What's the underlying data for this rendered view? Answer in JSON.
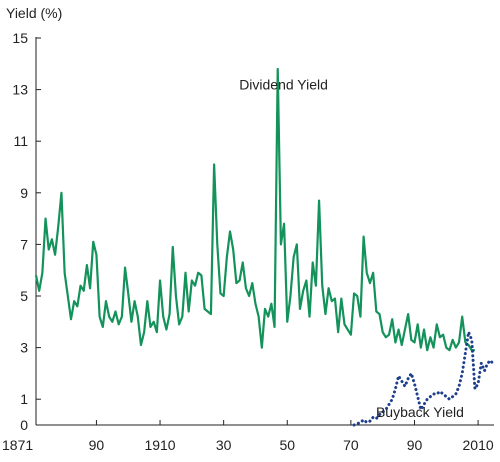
{
  "chart_data": {
    "type": "line",
    "ylabel": "Yield (%)",
    "xlabel": "",
    "xlim": [
      1871,
      2015
    ],
    "ylim": [
      0,
      15
    ],
    "grid": false,
    "legend": "none",
    "x_ticks": [
      1871,
      1890,
      1910,
      1930,
      1950,
      1970,
      1990,
      2010
    ],
    "x_tick_labels": [
      "1871",
      "90",
      "1910",
      "30",
      "50",
      "70",
      "90",
      "2010"
    ],
    "y_ticks": [
      0,
      1,
      3,
      5,
      7,
      9,
      11,
      13,
      15
    ],
    "y_tick_labels": [
      "0",
      "1",
      "3",
      "5",
      "7",
      "9",
      "11",
      "13",
      "15"
    ],
    "annotations": [
      {
        "text": "Dividend Yield",
        "series": "dividend",
        "x": 1933,
        "y": 13.2
      },
      {
        "text": "Buyback Yield",
        "series": "buyback",
        "x": 1976,
        "y": 0.5
      }
    ],
    "series": [
      {
        "key": "dividend",
        "color": "#13925a",
        "style": "solid",
        "points": [
          [
            1871,
            5.8
          ],
          [
            1872,
            5.2
          ],
          [
            1873,
            5.9
          ],
          [
            1874,
            8.0
          ],
          [
            1875,
            6.8
          ],
          [
            1876,
            7.2
          ],
          [
            1877,
            6.6
          ],
          [
            1878,
            7.7
          ],
          [
            1879,
            9.0
          ],
          [
            1880,
            5.9
          ],
          [
            1881,
            5.0
          ],
          [
            1882,
            4.1
          ],
          [
            1883,
            4.8
          ],
          [
            1884,
            4.6
          ],
          [
            1885,
            5.4
          ],
          [
            1886,
            5.2
          ],
          [
            1887,
            6.2
          ],
          [
            1888,
            5.3
          ],
          [
            1889,
            7.1
          ],
          [
            1890,
            6.6
          ],
          [
            1891,
            4.2
          ],
          [
            1892,
            3.8
          ],
          [
            1893,
            4.8
          ],
          [
            1894,
            4.2
          ],
          [
            1895,
            4.0
          ],
          [
            1896,
            4.4
          ],
          [
            1897,
            3.9
          ],
          [
            1898,
            4.2
          ],
          [
            1899,
            6.1
          ],
          [
            1900,
            5.1
          ],
          [
            1901,
            4.0
          ],
          [
            1902,
            4.8
          ],
          [
            1903,
            4.2
          ],
          [
            1904,
            3.1
          ],
          [
            1905,
            3.6
          ],
          [
            1906,
            4.8
          ],
          [
            1907,
            3.8
          ],
          [
            1908,
            4.0
          ],
          [
            1909,
            3.6
          ],
          [
            1910,
            5.6
          ],
          [
            1911,
            4.2
          ],
          [
            1912,
            3.7
          ],
          [
            1913,
            4.3
          ],
          [
            1914,
            6.9
          ],
          [
            1915,
            5.0
          ],
          [
            1916,
            3.9
          ],
          [
            1917,
            4.2
          ],
          [
            1918,
            5.9
          ],
          [
            1919,
            4.4
          ],
          [
            1920,
            5.6
          ],
          [
            1921,
            5.4
          ],
          [
            1922,
            5.9
          ],
          [
            1923,
            5.8
          ],
          [
            1924,
            4.5
          ],
          [
            1925,
            4.4
          ],
          [
            1926,
            4.3
          ],
          [
            1927,
            10.1
          ],
          [
            1928,
            7.0
          ],
          [
            1929,
            5.1
          ],
          [
            1930,
            5.0
          ],
          [
            1931,
            6.5
          ],
          [
            1932,
            7.5
          ],
          [
            1933,
            6.8
          ],
          [
            1934,
            5.5
          ],
          [
            1935,
            5.6
          ],
          [
            1936,
            6.3
          ],
          [
            1937,
            5.3
          ],
          [
            1938,
            5.0
          ],
          [
            1939,
            5.5
          ],
          [
            1940,
            4.7
          ],
          [
            1941,
            4.2
          ],
          [
            1942,
            3.0
          ],
          [
            1943,
            4.5
          ],
          [
            1944,
            4.2
          ],
          [
            1945,
            4.7
          ],
          [
            1946,
            3.8
          ],
          [
            1947,
            13.8
          ],
          [
            1948,
            7.0
          ],
          [
            1949,
            7.8
          ],
          [
            1950,
            4.0
          ],
          [
            1951,
            5.0
          ],
          [
            1952,
            6.5
          ],
          [
            1953,
            7.0
          ],
          [
            1954,
            4.5
          ],
          [
            1955,
            5.2
          ],
          [
            1956,
            5.6
          ],
          [
            1957,
            4.2
          ],
          [
            1958,
            6.3
          ],
          [
            1959,
            5.4
          ],
          [
            1960,
            8.7
          ],
          [
            1961,
            5.4
          ],
          [
            1962,
            4.3
          ],
          [
            1963,
            5.3
          ],
          [
            1964,
            4.8
          ],
          [
            1965,
            4.9
          ],
          [
            1966,
            3.6
          ],
          [
            1967,
            4.9
          ],
          [
            1968,
            3.9
          ],
          [
            1969,
            3.7
          ],
          [
            1970,
            3.5
          ],
          [
            1971,
            5.1
          ],
          [
            1972,
            5.0
          ],
          [
            1973,
            4.2
          ],
          [
            1974,
            7.3
          ],
          [
            1975,
            5.9
          ],
          [
            1976,
            5.5
          ],
          [
            1977,
            5.9
          ],
          [
            1978,
            4.4
          ],
          [
            1979,
            4.3
          ],
          [
            1980,
            3.6
          ],
          [
            1981,
            3.4
          ],
          [
            1982,
            3.5
          ],
          [
            1983,
            4.1
          ],
          [
            1984,
            3.2
          ],
          [
            1985,
            3.7
          ],
          [
            1986,
            3.1
          ],
          [
            1987,
            3.7
          ],
          [
            1988,
            4.3
          ],
          [
            1989,
            3.3
          ],
          [
            1990,
            3.2
          ],
          [
            1991,
            3.9
          ],
          [
            1992,
            3.0
          ],
          [
            1993,
            3.7
          ],
          [
            1994,
            2.9
          ],
          [
            1995,
            3.4
          ],
          [
            1996,
            3.0
          ],
          [
            1997,
            3.9
          ],
          [
            1998,
            3.4
          ],
          [
            1999,
            3.5
          ],
          [
            2000,
            3.0
          ],
          [
            2001,
            2.9
          ],
          [
            2002,
            3.3
          ],
          [
            2003,
            3.0
          ],
          [
            2004,
            3.2
          ],
          [
            2005,
            4.2
          ],
          [
            2006,
            3.2
          ],
          [
            2007,
            3.1
          ],
          [
            2008,
            2.9
          ],
          [
            2009,
            2.9
          ]
        ]
      },
      {
        "key": "buyback",
        "color": "#1e3f8c",
        "style": "dotted",
        "points": [
          [
            1971,
            0.0
          ],
          [
            1972,
            0.05
          ],
          [
            1973,
            0.1
          ],
          [
            1974,
            0.2
          ],
          [
            1975,
            0.1
          ],
          [
            1976,
            0.15
          ],
          [
            1977,
            0.3
          ],
          [
            1978,
            0.25
          ],
          [
            1979,
            0.4
          ],
          [
            1980,
            0.5
          ],
          [
            1981,
            0.6
          ],
          [
            1982,
            0.8
          ],
          [
            1983,
            1.0
          ],
          [
            1984,
            1.4
          ],
          [
            1985,
            1.9
          ],
          [
            1986,
            1.7
          ],
          [
            1987,
            1.5
          ],
          [
            1988,
            1.8
          ],
          [
            1989,
            2.0
          ],
          [
            1990,
            1.6
          ],
          [
            1991,
            1.1
          ],
          [
            1992,
            0.6
          ],
          [
            1993,
            0.8
          ],
          [
            1994,
            1.0
          ],
          [
            1995,
            1.1
          ],
          [
            1996,
            1.2
          ],
          [
            1997,
            1.2
          ],
          [
            1998,
            1.3
          ],
          [
            1999,
            1.2
          ],
          [
            2000,
            1.1
          ],
          [
            2001,
            1.0
          ],
          [
            2002,
            1.1
          ],
          [
            2003,
            1.2
          ],
          [
            2004,
            1.5
          ],
          [
            2005,
            2.0
          ],
          [
            2006,
            2.8
          ],
          [
            2007,
            3.6
          ],
          [
            2008,
            3.3
          ],
          [
            2009,
            1.4
          ],
          [
            2010,
            1.6
          ],
          [
            2011,
            2.4
          ],
          [
            2012,
            2.1
          ],
          [
            2013,
            2.4
          ],
          [
            2014,
            2.5
          ],
          [
            2015,
            2.3
          ]
        ]
      }
    ]
  }
}
